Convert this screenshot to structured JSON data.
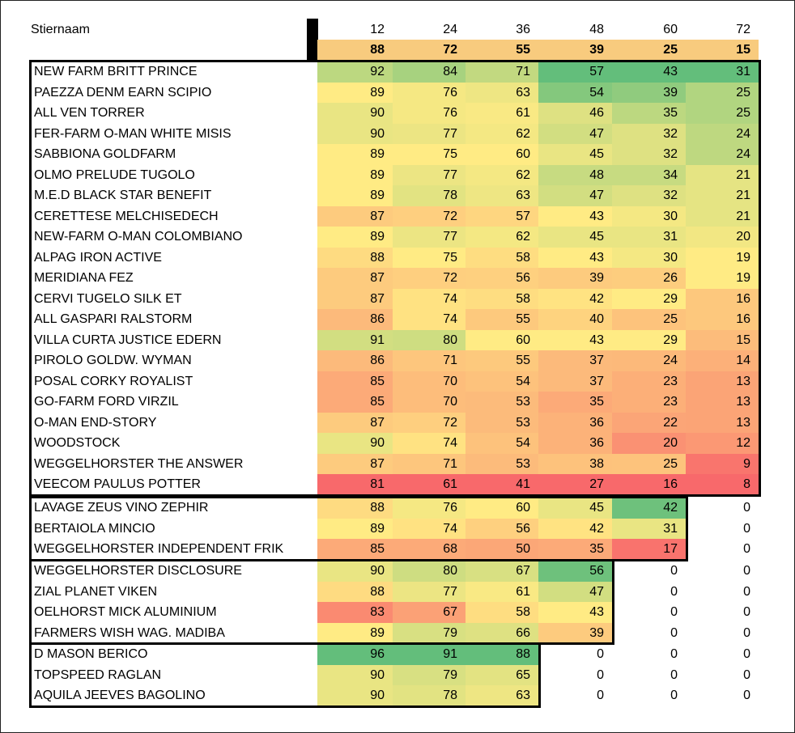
{
  "header": {
    "title": "Stiernaam",
    "months": [
      "12",
      "24",
      "36",
      "48",
      "60",
      "72"
    ],
    "general": [
      "88",
      "72",
      "55",
      "39",
      "25",
      "15"
    ]
  },
  "colors": {
    "general_bg": "#F8CB7E",
    "green": "#63BE7B",
    "yellow": "#FFEB84",
    "red": "#F8696B"
  },
  "rows": [
    {
      "name": "NEW FARM BRITT PRINCE",
      "v": [
        "92",
        "84",
        "71",
        "57",
        "43",
        "31"
      ]
    },
    {
      "name": "PAEZZA DENM EARN SCIPIO",
      "v": [
        "89",
        "76",
        "63",
        "54",
        "39",
        "25"
      ]
    },
    {
      "name": "ALL VEN TORRER",
      "v": [
        "90",
        "76",
        "61",
        "46",
        "35",
        "25"
      ]
    },
    {
      "name": "FER-FARM O-MAN WHITE MISIS",
      "v": [
        "90",
        "77",
        "62",
        "47",
        "32",
        "24"
      ]
    },
    {
      "name": "SABBIONA GOLDFARM",
      "v": [
        "89",
        "75",
        "60",
        "45",
        "32",
        "24"
      ]
    },
    {
      "name": "OLMO PRELUDE TUGOLO",
      "v": [
        "89",
        "77",
        "62",
        "48",
        "34",
        "21"
      ]
    },
    {
      "name": "M.E.D BLACK STAR BENEFIT",
      "v": [
        "89",
        "78",
        "63",
        "47",
        "32",
        "21"
      ]
    },
    {
      "name": "CERETTESE MELCHISEDECH",
      "v": [
        "87",
        "72",
        "57",
        "43",
        "30",
        "21"
      ]
    },
    {
      "name": "NEW-FARM O-MAN COLOMBIANO",
      "v": [
        "89",
        "77",
        "62",
        "45",
        "31",
        "20"
      ]
    },
    {
      "name": "ALPAG  IRON ACTIVE",
      "v": [
        "88",
        "75",
        "58",
        "43",
        "30",
        "19"
      ]
    },
    {
      "name": "MERIDIANA FEZ",
      "v": [
        "87",
        "72",
        "56",
        "39",
        "26",
        "19"
      ]
    },
    {
      "name": "CERVI TUGELO SILK ET",
      "v": [
        "87",
        "74",
        "58",
        "42",
        "29",
        "16"
      ]
    },
    {
      "name": "ALL GASPARI RALSTORM",
      "v": [
        "86",
        "74",
        "55",
        "40",
        "25",
        "16"
      ]
    },
    {
      "name": "VILLA CURTA JUSTICE EDERN",
      "v": [
        "91",
        "80",
        "60",
        "43",
        "29",
        "15"
      ]
    },
    {
      "name": "PIROLO GOLDW. WYMAN",
      "v": [
        "86",
        "71",
        "55",
        "37",
        "24",
        "14"
      ]
    },
    {
      "name": "POSAL CORKY ROYALIST",
      "v": [
        "85",
        "70",
        "54",
        "37",
        "23",
        "13"
      ]
    },
    {
      "name": "GO-FARM FORD VIRZIL",
      "v": [
        "85",
        "70",
        "53",
        "35",
        "23",
        "13"
      ]
    },
    {
      "name": "O-MAN END-STORY",
      "v": [
        "87",
        "72",
        "53",
        "36",
        "22",
        "13"
      ]
    },
    {
      "name": "WOODSTOCK",
      "v": [
        "90",
        "74",
        "54",
        "36",
        "20",
        "12"
      ]
    },
    {
      "name": "WEGGELHORSTER THE ANSWER",
      "v": [
        "87",
        "71",
        "53",
        "38",
        "25",
        "9"
      ]
    },
    {
      "name": "VEECOM PAULUS POTTER",
      "v": [
        "81",
        "61",
        "41",
        "27",
        "16",
        "8"
      ]
    },
    {
      "name": "LAVAGE ZEUS VINO ZEPHIR",
      "v": [
        "88",
        "76",
        "60",
        "45",
        "42",
        "0"
      ]
    },
    {
      "name": "BERTAIOLA MINCIO",
      "v": [
        "89",
        "74",
        "56",
        "42",
        "31",
        "0"
      ]
    },
    {
      "name": "WEGGELHORSTER INDEPENDENT FRIK",
      "v": [
        "85",
        "68",
        "50",
        "35",
        "17",
        "0"
      ]
    },
    {
      "name": "WEGGELHORSTER DISCLOSURE",
      "v": [
        "90",
        "80",
        "67",
        "56",
        "0",
        "0"
      ]
    },
    {
      "name": "ZIAL PLANET VIKEN",
      "v": [
        "88",
        "77",
        "61",
        "47",
        "0",
        "0"
      ]
    },
    {
      "name": "OELHORST MICK ALUMINIUM",
      "v": [
        "83",
        "67",
        "58",
        "43",
        "0",
        "0"
      ]
    },
    {
      "name": "FARMERS WISH WAG. MADIBA",
      "v": [
        "89",
        "79",
        "66",
        "39",
        "0",
        "0"
      ]
    },
    {
      "name": "D MASON BERICO",
      "v": [
        "96",
        "91",
        "88",
        "0",
        "0",
        "0"
      ]
    },
    {
      "name": "TOPSPEED RAGLAN",
      "v": [
        "90",
        "79",
        "65",
        "0",
        "0",
        "0"
      ]
    },
    {
      "name": "AQUILA JEEVES BAGOLINO",
      "v": [
        "90",
        "78",
        "63",
        "0",
        "0",
        "0"
      ]
    }
  ],
  "groups": [
    {
      "first": 0,
      "last": 20,
      "cols": 6
    },
    {
      "first": 21,
      "last": 23,
      "cols": 5
    },
    {
      "first": 24,
      "last": 27,
      "cols": 4
    },
    {
      "first": 28,
      "last": 30,
      "cols": 3
    }
  ]
}
